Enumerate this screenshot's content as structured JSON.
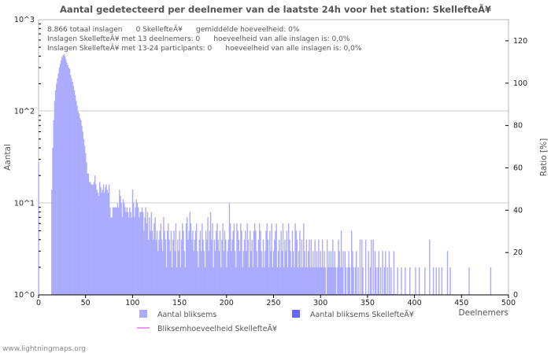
{
  "title": "Aantal gedetecteerd per deelnemer van de laatste 24h voor het station: SkellefteÃ¥",
  "info_lines": [
    "8.866 totaal inslagen      0 SkellefteÃ¥      gemiddelde hoeveelheid: 0%",
    "Inslagen SkellefteÃ¥ met 13 deelnemers: 0      hoeveelheid van alle inslagen is: 0,0%",
    "Inslagen SkellefteÃ¥ met 13-24 participants: 0      hoeveelheid van alle inslagen is: 0,0%"
  ],
  "legend": {
    "series1": "Aantal bliksems",
    "series2": "Aantal bliksems SkellefteÃ¥",
    "series3": "Bliksemhoeveelheid SkellefteÃ¥"
  },
  "footer": "www.lightningmaps.org",
  "colors": {
    "bars": "#aaaaff",
    "bars_station": "#6666ff",
    "ratio_line": "#ee99ee"
  },
  "chart_data": {
    "type": "bar",
    "title": "Aantal gedetecteerd per deelnemer van de laatste 24h voor het station: SkellefteÃ¥",
    "xlabel": "Deelnemers",
    "ylabel": "Aantal",
    "y2label": "Ratio [%]",
    "yscale": "log",
    "ylim": [
      1,
      1000
    ],
    "y2lim": [
      0,
      130
    ],
    "xlim": [
      0,
      500
    ],
    "x_ticks": [
      "0",
      "50",
      "100",
      "150",
      "200",
      "250",
      "300",
      "350",
      "400",
      "450",
      "500"
    ],
    "y_ticks": [
      "10^0",
      "10^1",
      "10^2",
      "10^3"
    ],
    "y2_ticks": [
      "0",
      "20",
      "40",
      "60",
      "80",
      "100",
      "120"
    ],
    "grid": true,
    "x_start": 0,
    "counts": [
      28,
      0,
      0,
      0,
      0,
      0,
      0,
      0,
      0,
      0,
      0,
      0,
      0,
      0,
      14,
      40,
      80,
      130,
      170,
      200,
      230,
      260,
      300,
      330,
      360,
      390,
      410,
      420,
      400,
      370,
      340,
      320,
      300,
      290,
      250,
      230,
      210,
      190,
      170,
      150,
      130,
      115,
      100,
      95,
      85,
      80,
      70,
      60,
      50,
      42,
      35,
      28,
      21,
      21,
      17,
      17,
      16,
      16,
      16,
      17,
      20,
      16,
      14,
      13,
      12,
      17,
      15,
      13,
      14,
      16,
      13,
      15,
      16,
      14,
      13,
      16,
      9,
      7,
      7,
      9,
      9,
      9,
      9,
      9,
      10,
      9,
      14,
      12,
      10,
      7,
      11,
      10,
      9,
      8,
      9,
      8,
      7,
      9,
      8,
      7,
      14,
      10,
      7,
      9,
      11,
      10,
      9,
      7,
      8,
      8,
      9,
      8,
      5,
      7,
      9,
      6,
      8,
      4,
      7,
      5,
      8,
      5,
      4,
      6,
      7,
      4,
      5,
      3,
      4,
      5,
      6,
      4,
      3,
      7,
      5,
      4,
      2,
      5,
      6,
      4,
      3,
      5,
      2,
      4,
      5,
      3,
      6,
      2,
      4,
      3,
      5,
      2,
      4,
      6,
      5,
      3,
      2,
      6,
      7,
      4,
      5,
      8,
      6,
      4,
      5,
      3,
      4,
      5,
      6,
      3,
      2,
      4,
      5,
      3,
      6,
      4,
      3,
      2,
      5,
      4,
      7,
      3,
      5,
      8,
      4,
      6,
      2,
      4,
      3,
      5,
      6,
      4,
      3,
      5,
      2,
      4,
      6,
      3,
      5,
      4,
      2,
      3,
      4,
      10,
      6,
      3,
      4,
      5,
      6,
      3,
      2,
      6,
      5,
      4,
      3,
      6,
      5,
      2,
      3,
      4,
      5,
      3,
      6,
      4,
      2,
      5,
      3,
      4,
      2,
      5,
      6,
      5,
      3,
      2,
      4,
      6,
      5,
      3,
      2,
      4,
      2,
      3,
      5,
      6,
      4,
      2,
      5,
      3,
      6,
      2,
      3,
      4,
      5,
      6,
      2,
      3,
      4,
      2,
      5,
      3,
      6,
      2,
      4,
      3,
      5,
      2,
      6,
      4,
      3,
      2,
      5,
      3,
      2,
      6,
      5,
      4,
      2,
      3,
      5,
      2,
      4,
      2,
      6,
      3,
      2,
      4,
      2,
      3,
      4,
      2,
      4,
      2,
      3,
      2,
      4,
      2,
      3,
      2,
      4,
      2,
      3,
      2,
      4,
      2,
      3,
      2,
      1,
      4,
      2,
      3,
      2,
      3,
      2,
      4,
      2,
      3,
      2,
      1,
      2,
      4,
      3,
      2,
      5,
      2,
      3,
      1,
      3,
      2,
      1,
      2,
      3,
      2,
      1,
      5,
      3,
      2,
      1,
      2,
      3,
      1,
      2,
      1,
      4,
      1,
      4,
      2,
      1,
      1,
      4,
      1,
      1,
      3,
      1,
      2,
      4,
      1,
      4,
      1,
      3,
      2,
      1,
      2,
      3,
      1,
      2,
      1,
      3,
      1,
      2,
      3,
      1,
      2,
      1,
      3,
      1,
      2,
      1,
      1,
      3,
      1,
      1,
      0,
      2,
      0,
      1,
      0,
      2,
      0,
      1,
      0,
      2,
      0,
      1,
      0,
      0,
      2,
      0,
      0,
      1,
      0,
      0,
      2,
      0,
      0,
      0,
      2,
      0,
      0,
      1,
      0,
      0,
      2,
      0,
      0,
      0,
      0,
      4,
      0,
      0,
      0,
      2,
      0,
      0,
      2,
      0,
      0,
      2,
      0,
      0,
      2,
      0,
      0,
      0,
      0,
      0,
      3,
      0,
      0,
      2,
      0,
      0,
      0,
      0,
      0,
      0,
      0,
      0,
      0,
      0,
      0,
      0,
      0,
      0,
      0,
      0,
      0,
      0,
      0,
      2,
      0,
      0,
      0,
      0,
      0,
      0,
      0,
      0,
      0,
      0,
      0,
      0,
      0,
      0,
      0,
      0,
      0,
      0,
      0,
      0,
      0,
      0,
      2,
      0,
      0,
      0,
      0,
      0,
      0,
      0,
      0,
      0,
      0,
      0,
      0,
      0,
      0,
      0,
      0,
      0,
      0,
      0
    ],
    "station_counts": [],
    "ratio": []
  }
}
